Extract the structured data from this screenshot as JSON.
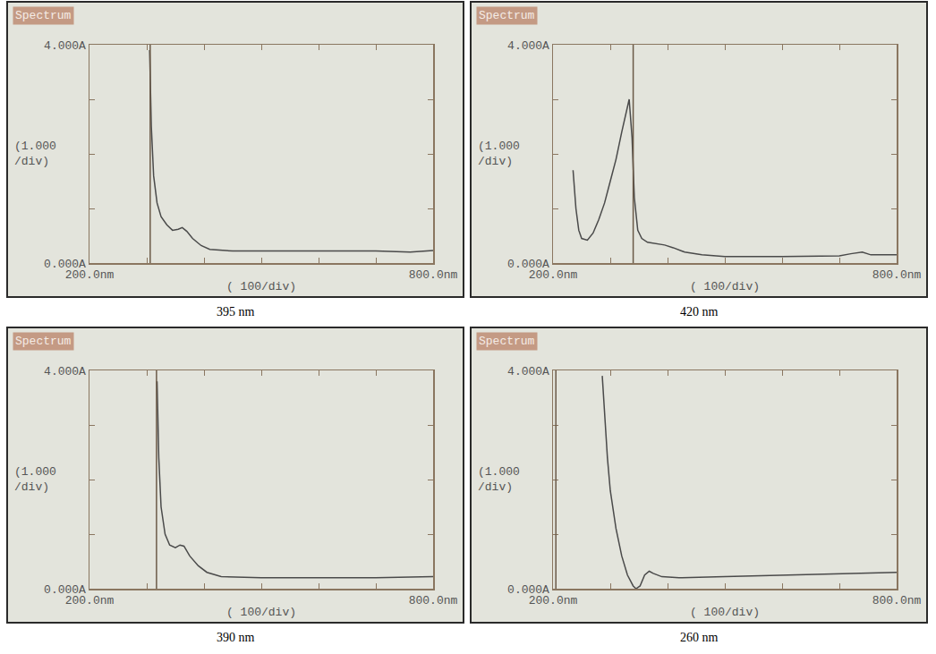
{
  "chart_data": [
    {
      "type": "line",
      "title": "Spectrum",
      "caption": "395 nm",
      "xlabel": "( 100/div)",
      "ylabel": "(1.000 /div)",
      "xlim": [
        200,
        800
      ],
      "ylim": [
        0,
        4
      ],
      "xticks": [
        {
          "value": 200,
          "label": "200.0nm"
        },
        {
          "value": 300,
          "label": null
        },
        {
          "value": 400,
          "label": null
        },
        {
          "value": 500,
          "label": null
        },
        {
          "value": 600,
          "label": null
        },
        {
          "value": 700,
          "label": null
        },
        {
          "value": 800,
          "label": "800.0nm"
        }
      ],
      "yticks": [
        {
          "value": 0,
          "label": "0.000A"
        },
        {
          "value": 1,
          "label": null
        },
        {
          "value": 2,
          "label": null
        },
        {
          "value": 3,
          "label": null
        },
        {
          "value": 4,
          "label": "4.000A"
        }
      ],
      "cursor": 306,
      "color": "#4a4a4a",
      "x": [
        305,
        308,
        312,
        318,
        325,
        335,
        345,
        355,
        362,
        370,
        380,
        395,
        410,
        450,
        500,
        600,
        700,
        760,
        800
      ],
      "values": [
        3.9,
        2.5,
        1.6,
        1.1,
        0.85,
        0.7,
        0.6,
        0.62,
        0.65,
        0.58,
        0.45,
        0.32,
        0.25,
        0.22,
        0.22,
        0.22,
        0.22,
        0.2,
        0.23
      ]
    },
    {
      "type": "line",
      "title": "Spectrum",
      "caption": "420 nm",
      "xlabel": "( 100/div)",
      "ylabel": "(1.000 /div)",
      "xlim": [
        200,
        800
      ],
      "ylim": [
        0,
        4
      ],
      "xticks": [
        {
          "value": 200,
          "label": "200.0nm"
        },
        {
          "value": 300,
          "label": null
        },
        {
          "value": 400,
          "label": null
        },
        {
          "value": 500,
          "label": null
        },
        {
          "value": 600,
          "label": null
        },
        {
          "value": 700,
          "label": null
        },
        {
          "value": 800,
          "label": "800.0nm"
        }
      ],
      "yticks": [
        {
          "value": 0,
          "label": "0.000A"
        },
        {
          "value": 1,
          "label": null
        },
        {
          "value": 2,
          "label": null
        },
        {
          "value": 3,
          "label": null
        },
        {
          "value": 4,
          "label": "4.000A"
        }
      ],
      "cursor": 340,
      "color": "#4a4a4a",
      "x": [
        235,
        240,
        245,
        250,
        260,
        270,
        280,
        290,
        300,
        310,
        320,
        328,
        333,
        338,
        342,
        348,
        355,
        365,
        380,
        395,
        410,
        430,
        460,
        500,
        600,
        700,
        720,
        740,
        755,
        800
      ],
      "values": [
        1.7,
        1.0,
        0.6,
        0.45,
        0.42,
        0.55,
        0.8,
        1.1,
        1.5,
        1.9,
        2.4,
        2.8,
        3.0,
        2.3,
        1.2,
        0.6,
        0.45,
        0.38,
        0.35,
        0.33,
        0.28,
        0.2,
        0.15,
        0.12,
        0.12,
        0.13,
        0.17,
        0.2,
        0.15,
        0.15
      ]
    },
    {
      "type": "line",
      "title": "Spectrum",
      "caption": "390 nm",
      "xlabel": "( 100/div)",
      "ylabel": "(1.000 /div)",
      "xlim": [
        200,
        800
      ],
      "ylim": [
        0,
        4
      ],
      "xticks": [
        {
          "value": 200,
          "label": "200.0nm"
        },
        {
          "value": 300,
          "label": null
        },
        {
          "value": 400,
          "label": null
        },
        {
          "value": 500,
          "label": null
        },
        {
          "value": 600,
          "label": null
        },
        {
          "value": 700,
          "label": null
        },
        {
          "value": 800,
          "label": "800.0nm"
        }
      ],
      "yticks": [
        {
          "value": 0,
          "label": "0.000A"
        },
        {
          "value": 1,
          "label": null
        },
        {
          "value": 2,
          "label": null
        },
        {
          "value": 3,
          "label": null
        },
        {
          "value": 4,
          "label": "4.000A"
        }
      ],
      "cursor": 317,
      "color": "#4a4a4a",
      "x": [
        318,
        321,
        325,
        332,
        340,
        350,
        358,
        365,
        375,
        390,
        405,
        430,
        500,
        600,
        700,
        800
      ],
      "values": [
        3.8,
        2.4,
        1.5,
        1.0,
        0.8,
        0.75,
        0.8,
        0.78,
        0.6,
        0.42,
        0.3,
        0.22,
        0.2,
        0.2,
        0.2,
        0.22
      ]
    },
    {
      "type": "line",
      "title": "Spectrum",
      "caption": "260 nm",
      "xlabel": "( 100/div)",
      "ylabel": "(1.000 /div)",
      "xlim": [
        200,
        800
      ],
      "ylim": [
        0,
        4
      ],
      "xticks": [
        {
          "value": 200,
          "label": "200.0nm"
        },
        {
          "value": 300,
          "label": null
        },
        {
          "value": 400,
          "label": null
        },
        {
          "value": 500,
          "label": null
        },
        {
          "value": 600,
          "label": null
        },
        {
          "value": 700,
          "label": null
        },
        {
          "value": 800,
          "label": "800.0nm"
        }
      ],
      "yticks": [
        {
          "value": 0,
          "label": "0.000A"
        },
        {
          "value": 1,
          "label": null
        },
        {
          "value": 2,
          "label": null
        },
        {
          "value": 3,
          "label": null
        },
        {
          "value": 4,
          "label": "4.000A"
        }
      ],
      "cursor": 205,
      "color": "#4a4a4a",
      "x": [
        286,
        290,
        295,
        300,
        310,
        320,
        330,
        340,
        345,
        352,
        360,
        368,
        375,
        390,
        420,
        500,
        600,
        700,
        800
      ],
      "values": [
        3.9,
        3.2,
        2.4,
        1.8,
        1.1,
        0.6,
        0.25,
        0.05,
        0.0,
        0.05,
        0.25,
        0.32,
        0.28,
        0.22,
        0.2,
        0.22,
        0.25,
        0.28,
        0.3
      ]
    }
  ]
}
